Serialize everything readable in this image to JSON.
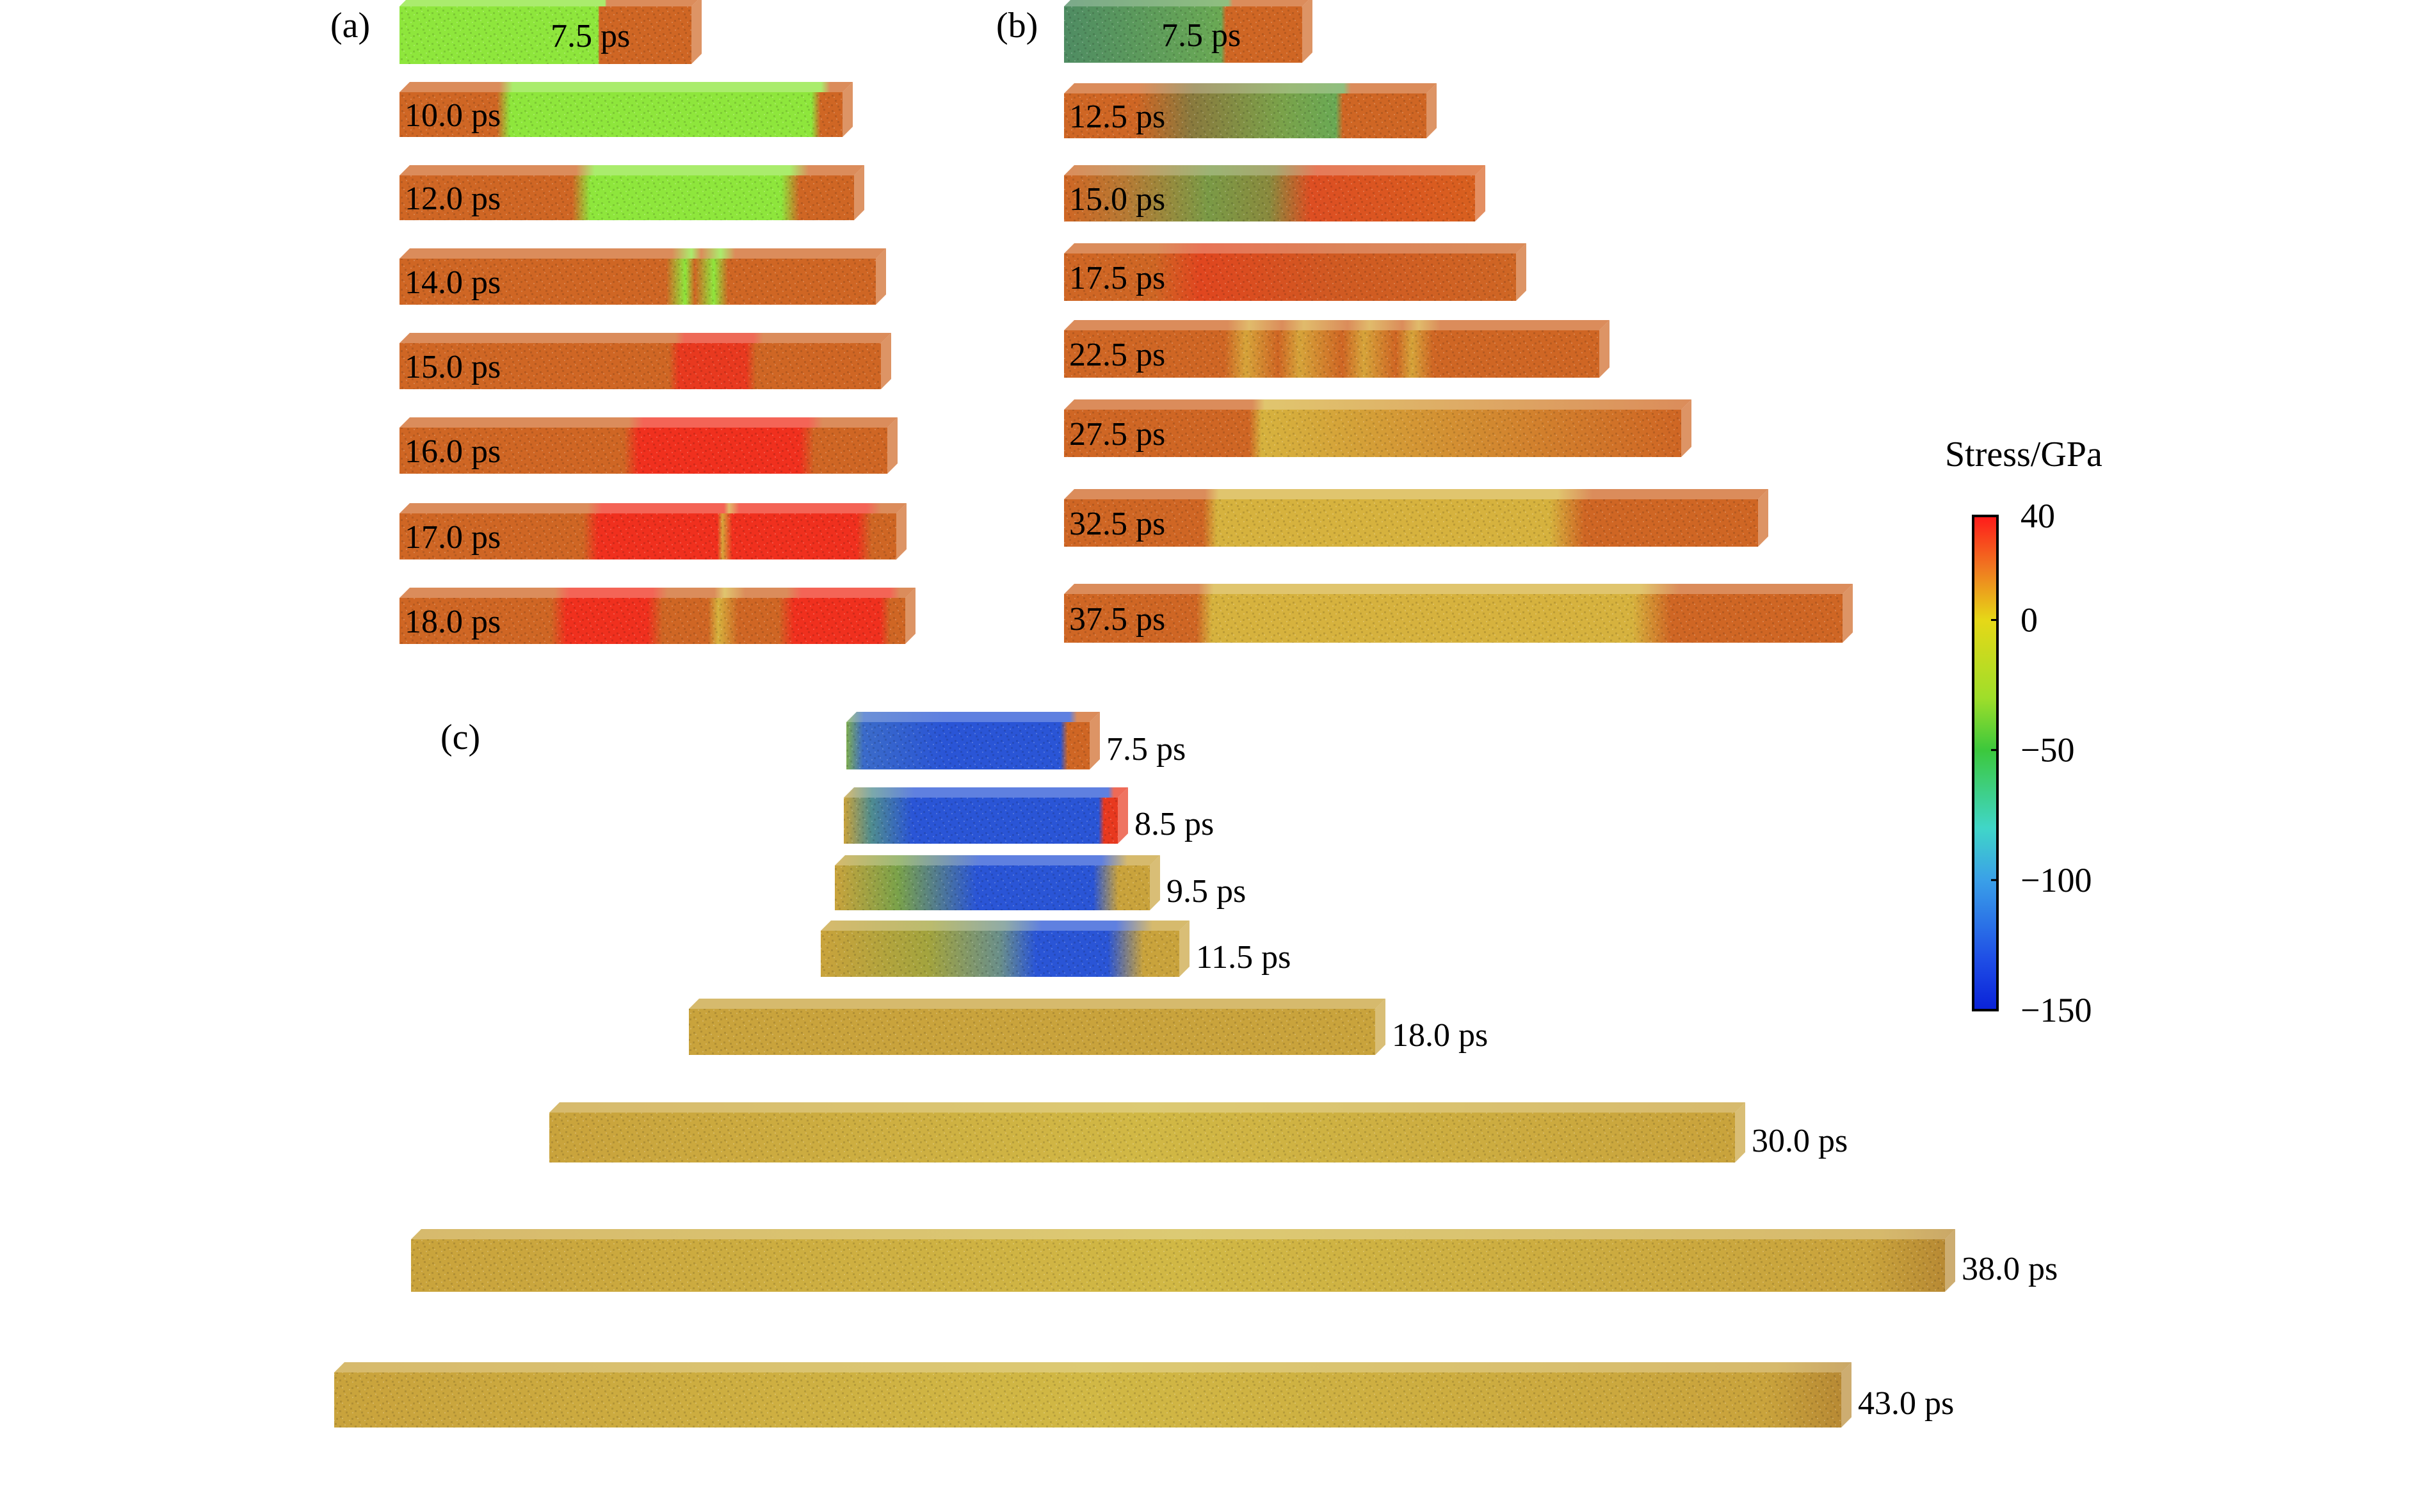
{
  "panels": {
    "a": {
      "label": "(a)",
      "bars": [
        {
          "time": "7.5 ps",
          "stops": [
            [
              0,
              "#8ee63c"
            ],
            [
              0.68,
              "#8ee63c"
            ],
            [
              0.685,
              "#cf6624"
            ],
            [
              1,
              "#cf6624"
            ]
          ]
        },
        {
          "time": "10.0 ps",
          "stops": [
            [
              0,
              "#cf6624"
            ],
            [
              0.22,
              "#cf6624"
            ],
            [
              0.25,
              "#8ee63c"
            ],
            [
              0.93,
              "#8ee63c"
            ],
            [
              0.95,
              "#cf6624"
            ],
            [
              1,
              "#cf6624"
            ]
          ]
        },
        {
          "time": "12.0 ps",
          "stops": [
            [
              0,
              "#cf6624"
            ],
            [
              0.38,
              "#cf6624"
            ],
            [
              0.42,
              "#8ee63c"
            ],
            [
              0.84,
              "#8ee63c"
            ],
            [
              0.88,
              "#cf6624"
            ],
            [
              1,
              "#cf6624"
            ]
          ]
        },
        {
          "time": "14.0 ps",
          "stops": [
            [
              0,
              "#cf6624"
            ],
            [
              0.56,
              "#cf6624"
            ],
            [
              0.6,
              "#8ee63c"
            ],
            [
              0.62,
              "#cf6624"
            ],
            [
              0.66,
              "#8ee63c"
            ],
            [
              0.69,
              "#cf6624"
            ],
            [
              1,
              "#cf6624"
            ]
          ]
        },
        {
          "time": "15.0 ps",
          "stops": [
            [
              0,
              "#cf6624"
            ],
            [
              0.56,
              "#cf6624"
            ],
            [
              0.58,
              "#e8391f"
            ],
            [
              0.72,
              "#e8391f"
            ],
            [
              0.74,
              "#cf6624"
            ],
            [
              1,
              "#cf6624"
            ]
          ]
        },
        {
          "time": "16.0 ps",
          "stops": [
            [
              0,
              "#cf6624"
            ],
            [
              0.46,
              "#cf6624"
            ],
            [
              0.49,
              "#f0301e"
            ],
            [
              0.82,
              "#f0301e"
            ],
            [
              0.85,
              "#cf6624"
            ],
            [
              1,
              "#cf6624"
            ]
          ]
        },
        {
          "time": "17.0 ps",
          "stops": [
            [
              0,
              "#cf6624"
            ],
            [
              0.37,
              "#cf6624"
            ],
            [
              0.4,
              "#f0301e"
            ],
            [
              0.64,
              "#f0301e"
            ],
            [
              0.65,
              "#d6a43a"
            ],
            [
              0.67,
              "#f0301e"
            ],
            [
              0.92,
              "#f0301e"
            ],
            [
              0.95,
              "#cf6624"
            ],
            [
              1,
              "#cf6624"
            ]
          ]
        },
        {
          "time": "18.0 ps",
          "stops": [
            [
              0,
              "#cf6624"
            ],
            [
              0.3,
              "#cf6624"
            ],
            [
              0.33,
              "#f0301e"
            ],
            [
              0.49,
              "#f0301e"
            ],
            [
              0.52,
              "#cf6624"
            ],
            [
              0.61,
              "#cf6624"
            ],
            [
              0.63,
              "#d6b23e"
            ],
            [
              0.67,
              "#cf6624"
            ],
            [
              0.75,
              "#cf6624"
            ],
            [
              0.78,
              "#f0301e"
            ],
            [
              0.95,
              "#f0301e"
            ],
            [
              0.97,
              "#cf6624"
            ],
            [
              1,
              "#cf6624"
            ]
          ]
        }
      ]
    },
    "b": {
      "label": "(b)",
      "bars": [
        {
          "time": "7.5 ps",
          "stops": [
            [
              0,
              "#4f8c63"
            ],
            [
              0.66,
              "#6aa954"
            ],
            [
              0.68,
              "#cf6624"
            ],
            [
              1,
              "#cf6624"
            ]
          ]
        },
        {
          "time": "12.5 ps",
          "stops": [
            [
              0,
              "#cf6624"
            ],
            [
              0.2,
              "#cf6624"
            ],
            [
              0.35,
              "#8a7a3e"
            ],
            [
              0.6,
              "#7aa24a"
            ],
            [
              0.75,
              "#6aa954"
            ],
            [
              0.77,
              "#cf6624"
            ],
            [
              1,
              "#cf6624"
            ]
          ]
        },
        {
          "time": "15.0 ps",
          "stops": [
            [
              0,
              "#cf6624"
            ],
            [
              0.15,
              "#b77a34"
            ],
            [
              0.35,
              "#7a9a46"
            ],
            [
              0.5,
              "#8a8a3e"
            ],
            [
              0.6,
              "#dd4e22"
            ],
            [
              1,
              "#d8601f"
            ]
          ]
        },
        {
          "time": "17.5 ps",
          "stops": [
            [
              0,
              "#cf6624"
            ],
            [
              0.2,
              "#cf6624"
            ],
            [
              0.3,
              "#e0461f"
            ],
            [
              0.6,
              "#d05a22"
            ],
            [
              1,
              "#cf6624"
            ]
          ]
        },
        {
          "time": "22.5 ps",
          "stops": [
            [
              0,
              "#cf6624"
            ],
            [
              0.3,
              "#cf6624"
            ],
            [
              0.34,
              "#d6a43a"
            ],
            [
              0.4,
              "#cf6624"
            ],
            [
              0.44,
              "#d6a43a"
            ],
            [
              0.52,
              "#cf6624"
            ],
            [
              0.56,
              "#d6a43a"
            ],
            [
              0.62,
              "#cf6624"
            ],
            [
              0.65,
              "#d6a43a"
            ],
            [
              0.69,
              "#cf6624"
            ],
            [
              1,
              "#cf6624"
            ]
          ]
        },
        {
          "time": "27.5 ps",
          "stops": [
            [
              0,
              "#cf6624"
            ],
            [
              0.3,
              "#cf6624"
            ],
            [
              0.32,
              "#d6b23e"
            ],
            [
              1,
              "#cf6624"
            ]
          ]
        },
        {
          "time": "32.5 ps",
          "stops": [
            [
              0,
              "#cf6624"
            ],
            [
              0.2,
              "#cf6624"
            ],
            [
              0.22,
              "#d6b23e"
            ],
            [
              0.7,
              "#d6b23e"
            ],
            [
              0.75,
              "#cf6624"
            ],
            [
              1,
              "#cf6624"
            ]
          ]
        },
        {
          "time": "37.5 ps",
          "stops": [
            [
              0,
              "#cf6624"
            ],
            [
              0.17,
              "#cf6624"
            ],
            [
              0.19,
              "#d6b23e"
            ],
            [
              0.73,
              "#d6b23e"
            ],
            [
              0.78,
              "#cf6624"
            ],
            [
              1,
              "#cf6624"
            ]
          ]
        }
      ]
    },
    "c": {
      "label": "(c)",
      "bars": [
        {
          "time": "7.5 ps",
          "stops": [
            [
              0,
              "#7fae52"
            ],
            [
              0.07,
              "#3b6bc9"
            ],
            [
              0.4,
              "#2a55d6"
            ],
            [
              0.88,
              "#2a55d6"
            ],
            [
              0.91,
              "#cf6624"
            ],
            [
              1,
              "#cf6624"
            ]
          ]
        },
        {
          "time": "8.5 ps",
          "stops": [
            [
              0,
              "#c9a33c"
            ],
            [
              0.1,
              "#4f8c8f"
            ],
            [
              0.25,
              "#2a55d6"
            ],
            [
              0.93,
              "#2a55d6"
            ],
            [
              0.95,
              "#e8391f"
            ],
            [
              1,
              "#e8391f"
            ]
          ]
        },
        {
          "time": "9.5 ps",
          "stops": [
            [
              0,
              "#c9a33c"
            ],
            [
              0.2,
              "#7aa24a"
            ],
            [
              0.45,
              "#2a55d6"
            ],
            [
              0.82,
              "#2a55d6"
            ],
            [
              0.9,
              "#c9a33c"
            ],
            [
              1,
              "#c9a33c"
            ]
          ]
        },
        {
          "time": "11.5 ps",
          "stops": [
            [
              0,
              "#c9a33c"
            ],
            [
              0.3,
              "#a3a43e"
            ],
            [
              0.5,
              "#6a8f8a"
            ],
            [
              0.6,
              "#2a55d6"
            ],
            [
              0.8,
              "#2a55d6"
            ],
            [
              0.9,
              "#c9a33c"
            ],
            [
              1,
              "#c9a33c"
            ]
          ]
        },
        {
          "time": "18.0 ps",
          "stops": [
            [
              0,
              "#c9a33c"
            ],
            [
              1,
              "#c9a33c"
            ]
          ]
        },
        {
          "time": "30.0 ps",
          "stops": [
            [
              0,
              "#c9a33c"
            ],
            [
              0.5,
              "#d1b845"
            ],
            [
              1,
              "#c9a33c"
            ]
          ]
        },
        {
          "time": "38.0 ps",
          "stops": [
            [
              0,
              "#c9a33c"
            ],
            [
              0.5,
              "#d1b845"
            ],
            [
              0.95,
              "#c9a33c"
            ],
            [
              1,
              "#b88a34"
            ]
          ]
        },
        {
          "time": "43.0 ps",
          "stops": [
            [
              0,
              "#c9a33c"
            ],
            [
              0.5,
              "#d1b845"
            ],
            [
              0.95,
              "#c9a33c"
            ],
            [
              1,
              "#b88a34"
            ]
          ]
        }
      ]
    }
  },
  "colorbar": {
    "title": "Stress/GPa",
    "ticks": [
      "40",
      "0",
      "−50",
      "−100",
      "−150"
    ],
    "range": [
      -150,
      40
    ],
    "tick_values": [
      40,
      0,
      -50,
      -100,
      -150
    ],
    "stops": [
      [
        40,
        "#ff1a1a"
      ],
      [
        20,
        "#f07820"
      ],
      [
        0,
        "#e6d817"
      ],
      [
        -30,
        "#9fde2a"
      ],
      [
        -50,
        "#3cc83c"
      ],
      [
        -80,
        "#40d6c8"
      ],
      [
        -100,
        "#3aa0e8"
      ],
      [
        -130,
        "#1f4fe6"
      ],
      [
        -150,
        "#0a22d8"
      ]
    ]
  }
}
